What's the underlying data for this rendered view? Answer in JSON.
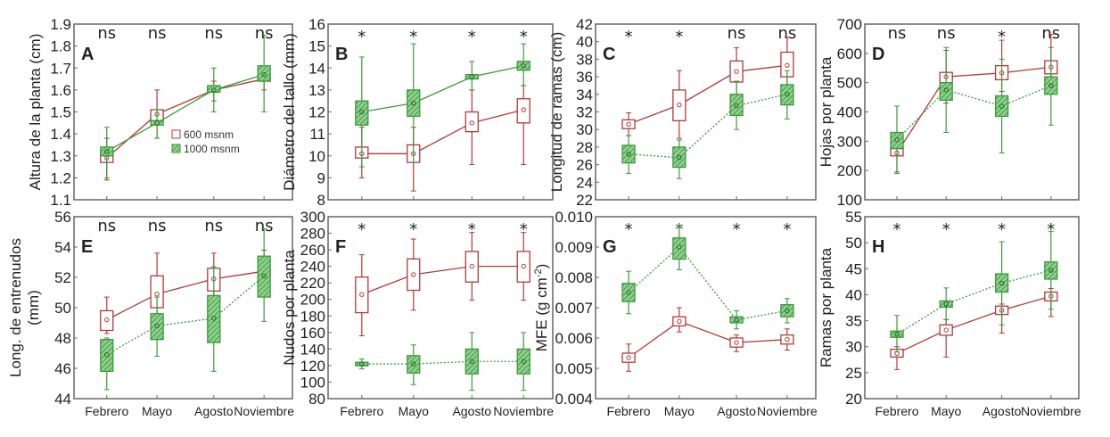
{
  "chart_data": [
    {
      "type": "box",
      "letter": "A",
      "ylabel": "Altura de la planta (cm)",
      "ylim": [
        1.1,
        1.9
      ],
      "tick_labels": [
        "1.1",
        "1.2",
        "1.3",
        "1.4",
        "1.5",
        "1.6",
        "1.7",
        "1.8",
        "1.9"
      ],
      "significance": [
        "ns",
        "ns",
        "ns",
        "ns"
      ],
      "green_dashed": false,
      "series": [
        {
          "name": "600 msnm",
          "color": "#b03a3a",
          "stats": [
            [
              1.29,
              1.27,
              1.31,
              1.19,
              1.38
            ],
            [
              1.49,
              1.46,
              1.51,
              1.38,
              1.6
            ],
            [
              1.6,
              1.59,
              1.61,
              1.55,
              1.64
            ],
            [
              1.65,
              1.64,
              1.66,
              1.6,
              1.7
            ]
          ]
        },
        {
          "name": "1000 msnm",
          "color": "#3a9a3a",
          "stats": [
            [
              1.32,
              1.3,
              1.34,
              1.2,
              1.43
            ],
            [
              1.45,
              1.44,
              1.46,
              1.38,
              1.51
            ],
            [
              1.6,
              1.59,
              1.62,
              1.5,
              1.7
            ],
            [
              1.67,
              1.64,
              1.71,
              1.5,
              1.85
            ]
          ]
        }
      ]
    },
    {
      "type": "box",
      "letter": "B",
      "ylabel": "Diámetro del tallo (mm)",
      "ylim": [
        8,
        16
      ],
      "tick_labels": [
        "8",
        "9",
        "10",
        "11",
        "12",
        "13",
        "14",
        "15",
        "16"
      ],
      "significance": [
        "*",
        "*",
        "*",
        "*"
      ],
      "green_dashed": false,
      "series": [
        {
          "name": "600 msnm",
          "color": "#b03a3a",
          "stats": [
            [
              10.1,
              9.9,
              10.4,
              9.0,
              11.3
            ],
            [
              10.1,
              9.7,
              10.5,
              8.4,
              11.3
            ],
            [
              11.5,
              11.1,
              12.0,
              9.6,
              13.0
            ],
            [
              12.1,
              11.5,
              12.6,
              9.6,
              13.2
            ]
          ]
        },
        {
          "name": "1000 msnm",
          "color": "#3a9a3a",
          "stats": [
            [
              12.0,
              11.4,
              12.5,
              9.5,
              14.5
            ],
            [
              12.4,
              11.8,
              13.0,
              9.7,
              15.1
            ],
            [
              13.6,
              13.5,
              13.7,
              13.0,
              14.3
            ],
            [
              14.1,
              13.9,
              14.3,
              13.2,
              15.1
            ]
          ]
        }
      ]
    },
    {
      "type": "box",
      "letter": "C",
      "ylabel": "Longitud de ramas (cm)",
      "ylim": [
        22,
        42
      ],
      "tick_labels": [
        "22",
        "24",
        "26",
        "28",
        "30",
        "32",
        "34",
        "36",
        "38",
        "40",
        "42"
      ],
      "significance": [
        "*",
        "*",
        "ns",
        "ns"
      ],
      "green_dashed": true,
      "series": [
        {
          "name": "600 msnm",
          "color": "#b03a3a",
          "stats": [
            [
              30.6,
              30.1,
              31.1,
              29.3,
              31.9
            ],
            [
              32.8,
              31.0,
              34.5,
              29.0,
              36.7
            ],
            [
              36.6,
              35.4,
              37.8,
              34.0,
              39.3
            ],
            [
              37.3,
              36.0,
              38.8,
              35.0,
              40.5
            ]
          ]
        },
        {
          "name": "1000 msnm",
          "color": "#3a9a3a",
          "stats": [
            [
              27.2,
              26.2,
              28.2,
              25.0,
              29.3
            ],
            [
              26.8,
              25.7,
              28.0,
              24.4,
              28.8
            ],
            [
              32.7,
              31.6,
              34.0,
              30.0,
              35.5
            ],
            [
              34.0,
              32.8,
              35.1,
              31.2,
              36.7
            ]
          ]
        }
      ]
    },
    {
      "type": "box",
      "letter": "D",
      "ylabel": "Hojas por planta",
      "ylim": [
        100,
        700
      ],
      "tick_labels": [
        "100",
        "200",
        "300",
        "400",
        "500",
        "600",
        "700"
      ],
      "significance": [
        "ns",
        "ns",
        "*",
        "ns"
      ],
      "green_dashed": true,
      "series": [
        {
          "name": "600 msnm",
          "color": "#b03a3a",
          "stats": [
            [
              260,
              250,
              275,
              195,
              280
            ],
            [
              520,
              500,
              535,
              430,
              610
            ],
            [
              533,
              510,
              558,
              470,
              645
            ],
            [
              553,
              530,
              575,
              490,
              665
            ]
          ]
        },
        {
          "name": "1000 msnm",
          "color": "#3a9a3a",
          "stats": [
            [
              305,
              275,
              330,
              190,
              420
            ],
            [
              475,
              440,
              500,
              330,
              620
            ],
            [
              420,
              385,
              455,
              260,
              580
            ],
            [
              490,
              460,
              520,
              355,
              620
            ]
          ]
        }
      ]
    },
    {
      "type": "box",
      "letter": "E",
      "ylabel": "Long. de entrenudos",
      "ylabel2": "(mm)",
      "ylim": [
        44,
        56
      ],
      "tick_labels": [
        "44",
        "46",
        "48",
        "50",
        "52",
        "54",
        "56"
      ],
      "significance": [
        "ns",
        "ns",
        "ns",
        "ns"
      ],
      "green_dashed": true,
      "categories": [
        "Febrero",
        "Mayo",
        "Agosto",
        "Noviembre"
      ],
      "series": [
        {
          "name": "600 msnm",
          "color": "#b03a3a",
          "stats": [
            [
              49.2,
              48.5,
              49.8,
              48.3,
              50.7
            ],
            [
              50.9,
              50.0,
              52.1,
              49.5,
              53.6
            ],
            [
              51.9,
              51.1,
              52.6,
              50.8,
              53.6
            ],
            [
              52.4,
              52.1,
              52.6,
              51.5,
              53.8
            ]
          ]
        },
        {
          "name": "1000 msnm",
          "color": "#3a9a3a",
          "stats": [
            [
              46.9,
              45.8,
              47.9,
              44.6,
              48.0
            ],
            [
              48.8,
              47.9,
              49.6,
              46.8,
              50.7
            ],
            [
              49.3,
              47.7,
              50.8,
              45.8,
              52.7
            ],
            [
              52.1,
              50.7,
              53.4,
              49.1,
              55.2
            ]
          ]
        }
      ]
    },
    {
      "type": "box",
      "letter": "F",
      "ylabel": "Nudos por planta",
      "ylim": [
        80,
        300
      ],
      "tick_labels": [
        "80",
        "100",
        "120",
        "140",
        "160",
        "180",
        "200",
        "220",
        "240",
        "260",
        "280",
        "300"
      ],
      "significance": [
        "*",
        "*",
        "*",
        "*"
      ],
      "green_dashed": true,
      "categories": [
        "Febrero",
        "Mayo",
        "Agosto",
        "Noviembre"
      ],
      "series": [
        {
          "name": "600 msnm",
          "color": "#b03a3a",
          "stats": [
            [
              206,
              184,
              227,
              156,
              254
            ],
            [
              230,
              211,
              249,
              187,
              273
            ],
            [
              240,
              221,
              258,
              199,
              281
            ],
            [
              240,
              221,
              258,
              199,
              281
            ]
          ]
        },
        {
          "name": "1000 msnm",
          "color": "#3a9a3a",
          "stats": [
            [
              122,
              120,
              124,
              116,
              128
            ],
            [
              122,
              111,
              132,
              97,
              145
            ],
            [
              125,
              110,
              140,
              90,
              160
            ],
            [
              125,
              110,
              140,
              90,
              160
            ]
          ]
        }
      ]
    },
    {
      "type": "box",
      "letter": "G",
      "ylabel": "MFE (g cm",
      "ylabel_sup": "-2",
      "ylabel_end": ")",
      "ylim": [
        0.004,
        0.01
      ],
      "tick_labels": [
        "0.004",
        "0.005",
        "0.006",
        "0.007",
        "0.008",
        "0.009",
        "0.010"
      ],
      "significance": [
        "*",
        "*",
        "*",
        "*"
      ],
      "green_dashed": true,
      "categories": [
        "Febrero",
        "Mayo",
        "Agosto",
        "Noviembre"
      ],
      "series": [
        {
          "name": "600 msnm",
          "color": "#b03a3a",
          "stats": [
            [
              0.00535,
              0.0052,
              0.0055,
              0.0049,
              0.0058
            ],
            [
              0.00655,
              0.0064,
              0.0067,
              0.0062,
              0.007
            ],
            [
              0.00585,
              0.0057,
              0.006,
              0.00555,
              0.0061
            ],
            [
              0.00595,
              0.0058,
              0.0061,
              0.0056,
              0.0063
            ]
          ]
        },
        {
          "name": "1000 msnm",
          "color": "#3a9a3a",
          "stats": [
            [
              0.0075,
              0.0072,
              0.0078,
              0.0068,
              0.0082
            ],
            [
              0.009,
              0.0086,
              0.0093,
              0.00825,
              0.0097
            ],
            [
              0.0066,
              0.0065,
              0.0067,
              0.0063,
              0.0069
            ],
            [
              0.0069,
              0.0067,
              0.0071,
              0.0065,
              0.0073
            ]
          ]
        }
      ]
    },
    {
      "type": "box",
      "letter": "H",
      "ylabel": "Ramas por planta",
      "ylim": [
        20,
        55
      ],
      "tick_labels": [
        "20",
        "25",
        "30",
        "35",
        "40",
        "45",
        "50",
        "55"
      ],
      "significance": [
        "*",
        "*",
        "*",
        "*"
      ],
      "green_dashed": true,
      "categories": [
        "Febrero",
        "Mayo",
        "Agosto",
        "Noviembre"
      ],
      "series": [
        {
          "name": "600 msnm",
          "color": "#b03a3a",
          "stats": [
            [
              28.7,
              28.0,
              29.5,
              25.6,
              30.0
            ],
            [
              33.2,
              32.2,
              34.2,
              28.0,
              35.2
            ],
            [
              37.0,
              36.2,
              37.8,
              32.6,
              38.2
            ],
            [
              39.7,
              38.8,
              40.5,
              35.8,
              41.2
            ]
          ]
        },
        {
          "name": "1000 msnm",
          "color": "#3a9a3a",
          "stats": [
            [
              32.4,
              31.8,
              33.0,
              29.0,
              36.0
            ],
            [
              38.2,
              37.6,
              38.8,
              35.2,
              41.3
            ],
            [
              42.2,
              40.5,
              44.0,
              34.2,
              50.2
            ],
            [
              44.7,
              43.0,
              46.3,
              37.2,
              52.2
            ]
          ]
        }
      ]
    }
  ],
  "legend": {
    "items": [
      "600 msnm",
      "1000 msnm"
    ]
  },
  "stats_order": [
    "mean",
    "q1",
    "q3",
    "min",
    "max"
  ]
}
